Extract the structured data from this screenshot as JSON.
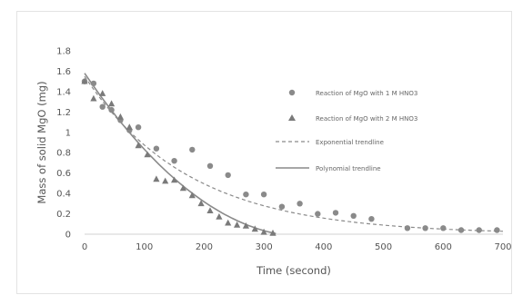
{
  "chart_data": {
    "type": "scatter",
    "title": "",
    "xlabel": "Time (second)",
    "ylabel": "Mass of solid MgO (mg)",
    "xlim": [
      0,
      700
    ],
    "ylim": [
      0,
      1.8
    ],
    "x_ticks": [
      "0",
      "100",
      "200",
      "300",
      "400",
      "500",
      "600",
      "700"
    ],
    "y_ticks": [
      "0",
      "0.2",
      "0.4",
      "0.6",
      "0.8",
      "1",
      "1.2",
      "1.4",
      "1.6",
      "1.8"
    ],
    "grid": false,
    "legend_placement": "right",
    "series": [
      {
        "name": "Reaction of MgO with 1 M HNO3",
        "marker": "circle",
        "color": "#8a8a8a",
        "points": [
          [
            0,
            1.5
          ],
          [
            15,
            1.48
          ],
          [
            30,
            1.25
          ],
          [
            45,
            1.22
          ],
          [
            60,
            1.12
          ],
          [
            75,
            1.02
          ],
          [
            90,
            1.05
          ],
          [
            120,
            0.84
          ],
          [
            150,
            0.72
          ],
          [
            180,
            0.83
          ],
          [
            210,
            0.67
          ],
          [
            240,
            0.58
          ],
          [
            270,
            0.39
          ],
          [
            300,
            0.39
          ],
          [
            330,
            0.27
          ],
          [
            360,
            0.3
          ],
          [
            390,
            0.2
          ],
          [
            420,
            0.21
          ],
          [
            450,
            0.18
          ],
          [
            480,
            0.15
          ],
          [
            540,
            0.06
          ],
          [
            570,
            0.06
          ],
          [
            600,
            0.06
          ],
          [
            630,
            0.04
          ],
          [
            660,
            0.04
          ],
          [
            690,
            0.04
          ]
        ]
      },
      {
        "name": "Reaction of MgO with 2 M HNO3",
        "marker": "triangle",
        "color": "#7a7a7a",
        "points": [
          [
            0,
            1.5
          ],
          [
            15,
            1.33
          ],
          [
            30,
            1.38
          ],
          [
            45,
            1.28
          ],
          [
            60,
            1.15
          ],
          [
            75,
            1.05
          ],
          [
            90,
            0.87
          ],
          [
            105,
            0.78
          ],
          [
            120,
            0.54
          ],
          [
            135,
            0.52
          ],
          [
            150,
            0.53
          ],
          [
            165,
            0.45
          ],
          [
            180,
            0.38
          ],
          [
            195,
            0.3
          ],
          [
            210,
            0.23
          ],
          [
            225,
            0.17
          ],
          [
            240,
            0.11
          ],
          [
            255,
            0.09
          ],
          [
            270,
            0.08
          ],
          [
            285,
            0.05
          ],
          [
            300,
            0.02
          ],
          [
            315,
            0.01
          ]
        ]
      },
      {
        "name": "Exponential trendline",
        "style": "dashed",
        "color": "#8a8a8a"
      },
      {
        "name": "Polynomial trendline",
        "style": "solid",
        "color": "#8a8a8a"
      }
    ]
  }
}
